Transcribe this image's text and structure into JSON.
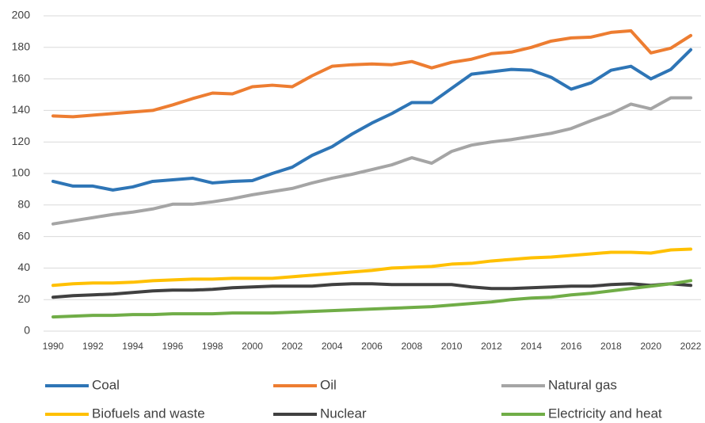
{
  "chart_data": {
    "type": "line",
    "x": [
      1990,
      1991,
      1992,
      1993,
      1994,
      1995,
      1996,
      1997,
      1998,
      1999,
      2000,
      2001,
      2002,
      2003,
      2004,
      2005,
      2006,
      2007,
      2008,
      2009,
      2010,
      2011,
      2012,
      2013,
      2014,
      2015,
      2016,
      2017,
      2018,
      2019,
      2020,
      2021,
      2022
    ],
    "series": [
      {
        "name": "Coal",
        "color": "#2e75b6",
        "values": [
          95,
          92,
          92,
          89.5,
          91.5,
          95,
          96,
          97,
          94,
          95,
          95.5,
          100,
          104,
          111.5,
          117,
          125,
          132,
          138,
          145,
          145,
          154,
          163,
          164.5,
          166,
          165.5,
          161,
          153.5,
          157.5,
          165.5,
          168,
          160,
          166,
          178.5
        ]
      },
      {
        "name": "Oil",
        "color": "#ed7d31",
        "values": [
          136.5,
          136,
          137,
          138,
          139,
          140,
          143.5,
          147.5,
          151,
          150.5,
          155,
          156,
          155,
          162,
          168,
          169,
          169.5,
          169,
          171,
          167,
          170.5,
          172.5,
          176,
          177,
          180,
          184,
          186,
          186.5,
          189.5,
          190.5,
          176.5,
          179.5,
          187.5
        ]
      },
      {
        "name": "Natural gas",
        "color": "#a5a5a5",
        "values": [
          68,
          70,
          72,
          74,
          75.5,
          77.5,
          80.5,
          80.5,
          82,
          84,
          86.5,
          88.5,
          90.5,
          94,
          97,
          99.5,
          102.5,
          105.5,
          110,
          106.5,
          114,
          118,
          120,
          121.5,
          123.5,
          125.5,
          128.5,
          133.5,
          138,
          144,
          141,
          148,
          148
        ]
      },
      {
        "name": "Biofuels and waste",
        "color": "#ffc000",
        "values": [
          29,
          30,
          30.5,
          30.5,
          31,
          32,
          32.5,
          33,
          33,
          33.5,
          33.5,
          33.5,
          34.5,
          35.5,
          36.5,
          37.5,
          38.5,
          40,
          40.5,
          41,
          42.5,
          43,
          44.5,
          45.5,
          46.5,
          47,
          48,
          49,
          50,
          50,
          49.5,
          51.5,
          52
        ]
      },
      {
        "name": "Nuclear",
        "color": "#404040",
        "values": [
          21.5,
          22.5,
          23,
          23.5,
          24.5,
          25.5,
          26,
          26,
          26.5,
          27.5,
          28,
          28.5,
          28.5,
          28.5,
          29.5,
          30,
          30,
          29.5,
          29.5,
          29.5,
          29.5,
          28,
          27,
          27,
          27.5,
          28,
          28.5,
          28.5,
          29.5,
          30,
          29,
          30,
          29
        ]
      },
      {
        "name": "Electricity and heat",
        "color": "#70ad47",
        "values": [
          9,
          9.5,
          10,
          10,
          10.5,
          10.5,
          11,
          11,
          11,
          11.5,
          11.5,
          11.5,
          12,
          12.5,
          13,
          13.5,
          14,
          14.5,
          15,
          15.5,
          16.5,
          17.5,
          18.5,
          20,
          21,
          21.5,
          23,
          24,
          25.5,
          27,
          28.5,
          30,
          32
        ]
      }
    ],
    "xlim": [
      1990,
      2022
    ],
    "xticks": [
      1990,
      1992,
      1994,
      1996,
      1998,
      2000,
      2002,
      2004,
      2006,
      2008,
      2010,
      2012,
      2014,
      2016,
      2018,
      2020,
      2022
    ],
    "ylim": [
      0,
      200
    ],
    "yticks": [
      0,
      20,
      40,
      60,
      80,
      100,
      120,
      140,
      160,
      180,
      200
    ],
    "grid": true
  }
}
